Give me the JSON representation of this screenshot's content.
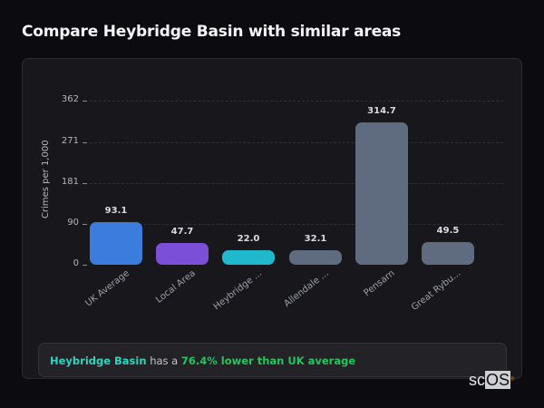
{
  "header": {
    "title": "Compare Heybridge Basin with similar areas"
  },
  "chart_data": {
    "type": "bar",
    "title": "Compare Heybridge Basin with similar areas",
    "xlabel": "",
    "ylabel": "Crimes per 1,000",
    "ylim": [
      0,
      362
    ],
    "yticks": [
      "362",
      "271",
      "181",
      "90",
      "0"
    ],
    "grid": true,
    "legend": "none",
    "categories": [
      "UK Average",
      "Local Area",
      "Heybridge ...",
      "Allendale ...",
      "Pensarn",
      "Great Rybu..."
    ],
    "values": [
      93.1,
      47.7,
      22.0,
      32.1,
      314.7,
      49.5
    ],
    "value_labels": [
      "93.1",
      "47.7",
      "22.0",
      "32.1",
      "314.7",
      "49.5"
    ],
    "colors": [
      "#3b7ddd",
      "#7c4fd8",
      "#1fb8cd",
      "#5f6b7e",
      "#5f6b7e",
      "#5f6b7e"
    ]
  },
  "summary": {
    "area_name": "Heybridge Basin",
    "middle_text": " has a ",
    "comparison": "76.4% lower than UK average"
  },
  "watermark": {
    "sc": "sc",
    "os": "OS",
    "mark": "®"
  }
}
